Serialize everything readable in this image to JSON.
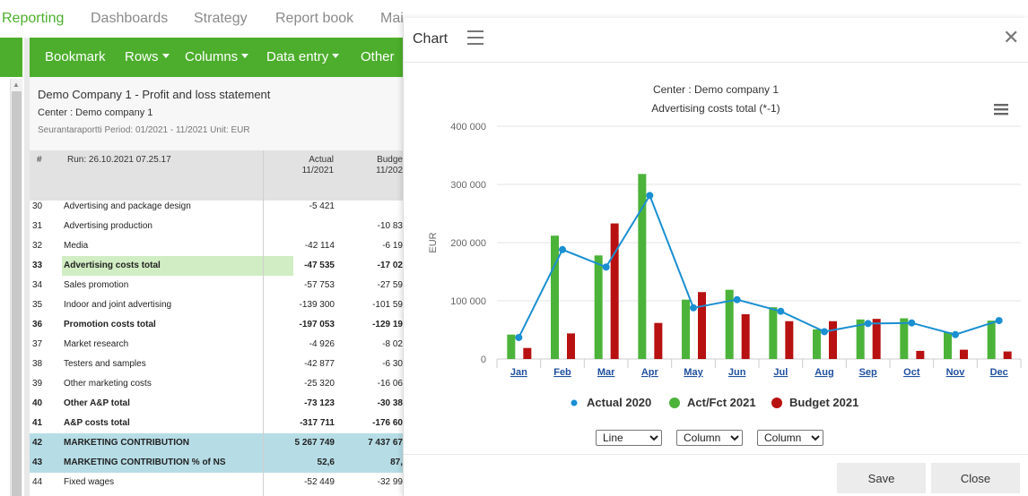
{
  "nav": {
    "tabs": [
      {
        "label": "Reporting",
        "active": true
      },
      {
        "label": "Dashboards"
      },
      {
        "label": "Strategy"
      },
      {
        "label": "Report book"
      },
      {
        "label": "Mai"
      }
    ]
  },
  "toolbar": {
    "bookmark": "Bookmark",
    "rows": "Rows",
    "columns": "Columns",
    "data_entry": "Data entry",
    "other": "Other"
  },
  "report": {
    "title": "Demo Company 1 - Profit and loss statement",
    "center": "Center : Demo company 1",
    "period": "Seurantaraportti Period: 01/2021 - 11/2021 Unit: EUR",
    "header": {
      "hash": "#",
      "run": "Run: 26.10.2021 07.25.17",
      "actual": "Actual",
      "actual_period": "11/2021",
      "budget": "Budge",
      "budget_period": "11/202"
    },
    "rows": [
      {
        "num": "30",
        "label": "Advertising and package design",
        "actual": "-5 421",
        "budget": ""
      },
      {
        "num": "31",
        "label": "Advertising production",
        "actual": "",
        "budget": "-10 83"
      },
      {
        "num": "32",
        "label": "Media",
        "actual": "-42 114",
        "budget": "-6 19"
      },
      {
        "num": "33",
        "label": "Advertising costs total",
        "actual": "-47 535",
        "budget": "-17 02",
        "bold": true,
        "highlight": "green"
      },
      {
        "num": "34",
        "label": "Sales promotion",
        "actual": "-57 753",
        "budget": "-27 59"
      },
      {
        "num": "35",
        "label": "Indoor and joint advertising",
        "actual": "-139 300",
        "budget": "-101 59"
      },
      {
        "num": "36",
        "label": "Promotion costs total",
        "actual": "-197 053",
        "budget": "-129 19",
        "bold": true
      },
      {
        "num": "37",
        "label": "Market research",
        "actual": "-4 926",
        "budget": "-8 02"
      },
      {
        "num": "38",
        "label": "Testers and samples",
        "actual": "-42 877",
        "budget": "-6 30"
      },
      {
        "num": "39",
        "label": "Other marketing costs",
        "actual": "-25 320",
        "budget": "-16 06"
      },
      {
        "num": "40",
        "label": "Other A&P total",
        "actual": "-73 123",
        "budget": "-30 38",
        "bold": true
      },
      {
        "num": "41",
        "label": "A&P costs total",
        "actual": "-317 711",
        "budget": "-176 60",
        "bold": true
      },
      {
        "num": "42",
        "label": "MARKETING CONTRIBUTION",
        "actual": "5 267 749",
        "budget": "7 437 67",
        "bold": true,
        "highlight": "cyan"
      },
      {
        "num": "43",
        "label": "MARKETING CONTRIBUTION % of NS",
        "actual": "52,6",
        "budget": "87,",
        "bold": true,
        "highlight": "cyan"
      },
      {
        "num": "44",
        "label": "Fixed wages",
        "actual": "-52 449",
        "budget": "-32 99"
      }
    ]
  },
  "dialog": {
    "title": "Chart",
    "close_icon": "close-icon",
    "menu_icon": "hamburger-icon",
    "controls": [
      "Line",
      "Column",
      "Column"
    ],
    "save_label": "Save",
    "close_label": "Close"
  },
  "chart_data": {
    "type": "bar",
    "title": "Center : Demo company 1",
    "subtitle": "Advertising costs total (*-1)",
    "ylabel": "EUR",
    "xlabel": "",
    "ylim": [
      0,
      400000
    ],
    "yticks": [
      0,
      100000,
      200000,
      300000,
      400000
    ],
    "ytick_labels": [
      "0",
      "100 000",
      "200 000",
      "300 000",
      "400 000"
    ],
    "categories": [
      "Jan",
      "Feb",
      "Mar",
      "Apr",
      "May",
      "Jun",
      "Jul",
      "Aug",
      "Sep",
      "Oct",
      "Nov",
      "Dec"
    ],
    "series": [
      {
        "name": "Actual 2020",
        "render": "line",
        "color": "#1a8fd1",
        "values": [
          37000,
          188000,
          158000,
          281000,
          88000,
          102000,
          82000,
          47000,
          61000,
          62000,
          42000,
          66000
        ]
      },
      {
        "name": "Act/Fct 2021",
        "render": "column",
        "color": "#4cb33a",
        "values": [
          42000,
          212000,
          178000,
          318000,
          102000,
          119000,
          89000,
          51000,
          68000,
          70000,
          46000,
          66000
        ]
      },
      {
        "name": "Budget 2021",
        "render": "column",
        "color": "#b81111",
        "values": [
          19000,
          44000,
          233000,
          62000,
          115000,
          77000,
          65000,
          65000,
          69000,
          14000,
          16000,
          13000
        ]
      }
    ],
    "legend_position": "bottom",
    "grid": true,
    "menu_icon": "hamburger-icon"
  }
}
